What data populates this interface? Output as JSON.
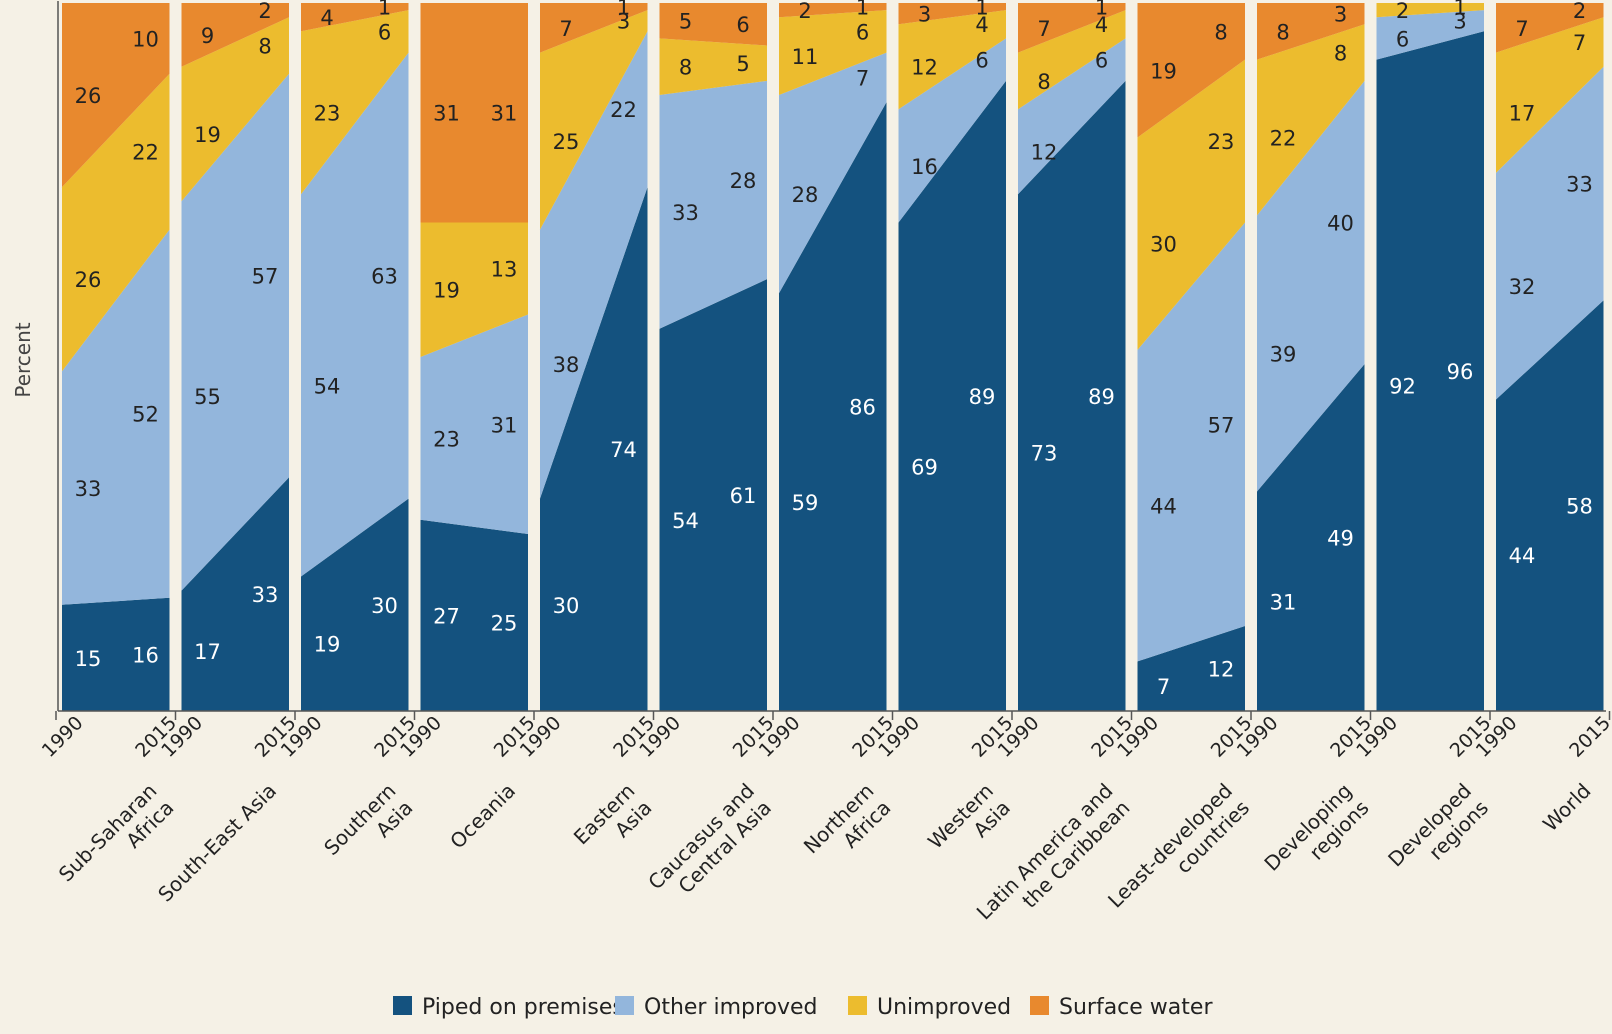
{
  "chart_data": {
    "type": "area",
    "title": "",
    "ylabel": "Percent",
    "ylim": [
      0,
      100
    ],
    "x_ticks": [
      "1990",
      "2015"
    ],
    "legend_position": "bottom",
    "series": [
      {
        "name": "Piped on premises",
        "color": "#14527f"
      },
      {
        "name": "Other improved",
        "color": "#93b6dc"
      },
      {
        "name": "Unimproved",
        "color": "#ecbc2e"
      },
      {
        "name": "Surface water",
        "color": "#e8892e"
      }
    ],
    "groups": [
      {
        "label": [
          "Sub-Saharan",
          "Africa"
        ],
        "v1990": [
          15,
          33,
          26,
          26
        ],
        "v2015": [
          16,
          52,
          22,
          10
        ]
      },
      {
        "label": [
          "South-East Asia"
        ],
        "v1990": [
          17,
          55,
          19,
          9
        ],
        "v2015": [
          33,
          57,
          8,
          2
        ]
      },
      {
        "label": [
          "Southern",
          "Asia"
        ],
        "v1990": [
          19,
          54,
          23,
          4
        ],
        "v2015": [
          30,
          63,
          6,
          1
        ]
      },
      {
        "label": [
          "Oceania"
        ],
        "v1990": [
          27,
          23,
          19,
          31
        ],
        "v2015": [
          25,
          31,
          13,
          31
        ]
      },
      {
        "label": [
          "Eastern",
          "Asia"
        ],
        "v1990": [
          30,
          38,
          25,
          7
        ],
        "v2015": [
          74,
          22,
          3,
          1
        ]
      },
      {
        "label": [
          "Caucasus and",
          "Central Asia"
        ],
        "v1990": [
          54,
          33,
          8,
          5
        ],
        "v2015": [
          61,
          28,
          5,
          6
        ]
      },
      {
        "label": [
          "Northern",
          "Africa"
        ],
        "v1990": [
          59,
          28,
          11,
          2
        ],
        "v2015": [
          86,
          7,
          6,
          1
        ]
      },
      {
        "label": [
          "Western",
          "Asia"
        ],
        "v1990": [
          69,
          16,
          12,
          3
        ],
        "v2015": [
          89,
          6,
          4,
          1
        ]
      },
      {
        "label": [
          "Latin America and",
          "the Caribbean"
        ],
        "v1990": [
          73,
          12,
          8,
          7
        ],
        "v2015": [
          89,
          6,
          4,
          1
        ]
      },
      {
        "label": [
          "Least-developed",
          "countries"
        ],
        "v1990": [
          7,
          44,
          30,
          19
        ],
        "v2015": [
          12,
          57,
          23,
          8
        ]
      },
      {
        "label": [
          "Developing",
          "regions"
        ],
        "v1990": [
          31,
          39,
          22,
          8
        ],
        "v2015": [
          49,
          40,
          8,
          3
        ]
      },
      {
        "label": [
          "Developed",
          "regions"
        ],
        "v1990": [
          92,
          6,
          2,
          null
        ],
        "v2015": [
          96,
          3,
          1,
          null
        ]
      },
      {
        "label": [
          "World"
        ],
        "v1990": [
          44,
          32,
          17,
          7
        ],
        "v2015": [
          58,
          33,
          7,
          2
        ]
      }
    ]
  }
}
